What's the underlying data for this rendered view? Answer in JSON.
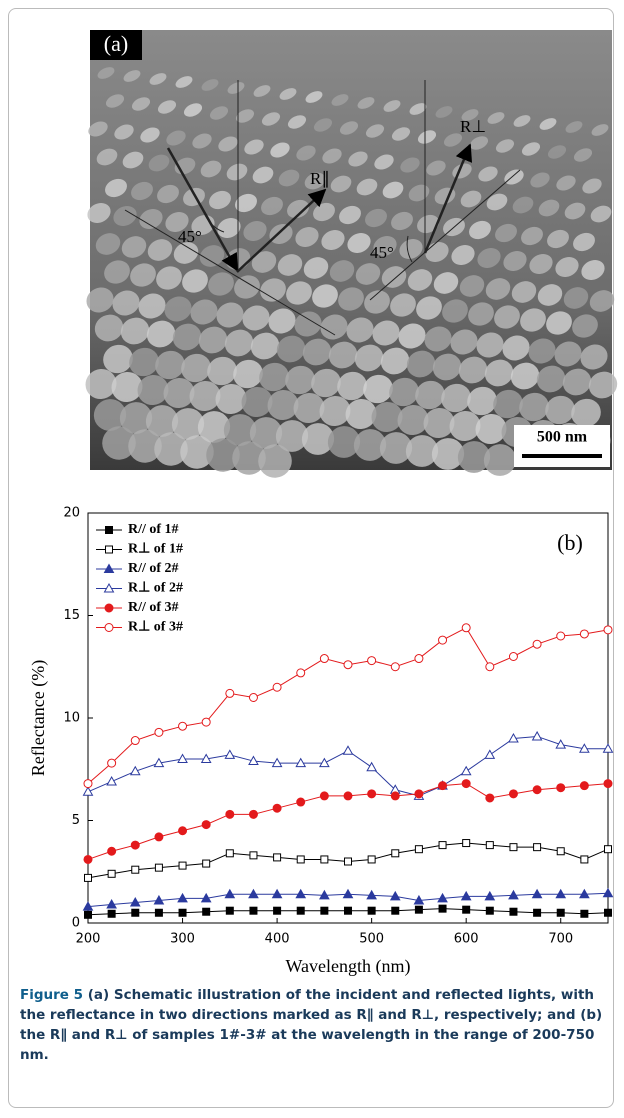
{
  "panel_a": {
    "label": "(a)",
    "r_parallel": "R∥",
    "r_perp": "R⊥",
    "angle_left": "45°",
    "angle_right": "45°",
    "scale_bar": "500 nm"
  },
  "chart_data": {
    "type": "line",
    "panel_label": "(b)",
    "x_label": "Wavelength (nm)",
    "y_label": "Reflectance (%)",
    "x": [
      200,
      225,
      250,
      275,
      300,
      325,
      350,
      375,
      400,
      425,
      450,
      475,
      500,
      525,
      550,
      575,
      600,
      625,
      650,
      675,
      700,
      725,
      750
    ],
    "xlim": [
      200,
      750
    ],
    "xticks": [
      200,
      300,
      400,
      500,
      600,
      700
    ],
    "ylim": [
      0,
      20
    ],
    "yticks": [
      0,
      5,
      10,
      15,
      20
    ],
    "legend": "upper left",
    "series": [
      {
        "name": "R// of 1#",
        "color": "#000000",
        "marker": "square",
        "filled": true,
        "values": [
          0.4,
          0.45,
          0.5,
          0.5,
          0.5,
          0.55,
          0.6,
          0.6,
          0.6,
          0.6,
          0.6,
          0.6,
          0.6,
          0.6,
          0.65,
          0.7,
          0.65,
          0.6,
          0.55,
          0.5,
          0.5,
          0.45,
          0.5
        ]
      },
      {
        "name": "R⊥ of 1#",
        "color": "#000000",
        "marker": "square",
        "filled": false,
        "values": [
          2.2,
          2.4,
          2.6,
          2.7,
          2.8,
          2.9,
          3.4,
          3.3,
          3.2,
          3.1,
          3.1,
          3.0,
          3.1,
          3.4,
          3.6,
          3.8,
          3.9,
          3.8,
          3.7,
          3.7,
          3.5,
          3.1,
          3.6
        ]
      },
      {
        "name": "R// of 2#",
        "color": "#2b3a9e",
        "marker": "triangle",
        "filled": true,
        "values": [
          0.8,
          0.9,
          1.0,
          1.1,
          1.2,
          1.2,
          1.4,
          1.4,
          1.4,
          1.4,
          1.35,
          1.4,
          1.35,
          1.3,
          1.1,
          1.2,
          1.3,
          1.3,
          1.35,
          1.4,
          1.4,
          1.4,
          1.45
        ]
      },
      {
        "name": "R⊥ of 2#",
        "color": "#2b3a9e",
        "marker": "triangle",
        "filled": false,
        "values": [
          6.4,
          6.9,
          7.4,
          7.8,
          8.0,
          8.0,
          8.2,
          7.9,
          7.8,
          7.8,
          7.8,
          8.4,
          7.6,
          6.5,
          6.2,
          6.7,
          7.4,
          8.2,
          9.0,
          9.1,
          8.7,
          8.5,
          8.5
        ]
      },
      {
        "name": "R// of 3#",
        "color": "#e31a1c",
        "marker": "circle",
        "filled": true,
        "values": [
          3.1,
          3.5,
          3.8,
          4.2,
          4.5,
          4.8,
          5.3,
          5.3,
          5.6,
          5.9,
          6.2,
          6.2,
          6.3,
          6.2,
          6.3,
          6.7,
          6.8,
          6.1,
          6.3,
          6.5,
          6.6,
          6.7,
          6.8
        ]
      },
      {
        "name": "R⊥ of 3#",
        "color": "#e31a1c",
        "marker": "circle",
        "filled": false,
        "values": [
          6.8,
          7.8,
          8.9,
          9.3,
          9.6,
          9.8,
          11.2,
          11.0,
          11.5,
          12.2,
          12.9,
          12.6,
          12.8,
          12.5,
          12.9,
          13.8,
          14.4,
          12.5,
          13.0,
          13.6,
          14.0,
          14.1,
          14.3
        ]
      }
    ]
  },
  "caption": {
    "label": "Figure 5",
    "text": "(a) Schematic illustration of the incident and reflected lights, with the reflectance in two directions marked as R∥ and R⊥, respectively; and (b) the R∥ and R⊥ of samples 1#-3# at the wavelength in the range of 200-750 nm."
  }
}
